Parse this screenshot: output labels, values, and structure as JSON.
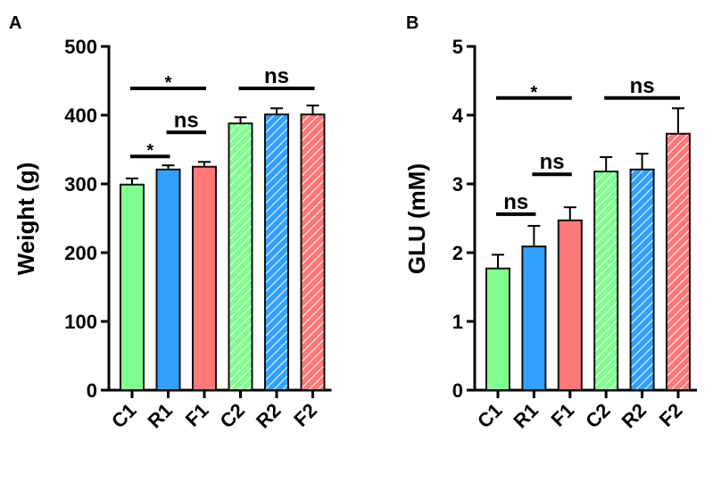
{
  "chart_data": [
    {
      "panel": "A",
      "type": "bar",
      "ylabel": "Weight (g)",
      "ylim": [
        0,
        500
      ],
      "yticks": [
        0,
        100,
        200,
        300,
        400,
        500
      ],
      "categories": [
        "C1",
        "R1",
        "F1",
        "C2",
        "R2",
        "F2"
      ],
      "values": [
        299,
        321,
        325,
        388,
        401,
        401
      ],
      "errors": [
        9,
        6,
        7,
        9,
        9,
        13
      ],
      "colors": [
        "#80ff90",
        "#33a0ff",
        "#ff7878",
        "#80ff90",
        "#33a0ff",
        "#ff7878"
      ],
      "hatched": [
        false,
        false,
        false,
        true,
        true,
        true
      ],
      "comparisons": [
        {
          "from": "C1",
          "to": "F1",
          "label": "*",
          "level": 439
        },
        {
          "from": "C1",
          "to": "R1",
          "label": "*",
          "level": 340
        },
        {
          "from": "R1",
          "to": "F1",
          "label": "ns",
          "level": 375
        },
        {
          "from": "C2",
          "to": "F2",
          "label": "ns",
          "level": 439
        }
      ]
    },
    {
      "panel": "B",
      "type": "bar",
      "ylabel": "GLU (mM)",
      "ylim": [
        0,
        5
      ],
      "yticks": [
        0,
        1,
        2,
        3,
        4,
        5
      ],
      "categories": [
        "C1",
        "R1",
        "F1",
        "C2",
        "R2",
        "F2"
      ],
      "values": [
        1.77,
        2.09,
        2.47,
        3.18,
        3.21,
        3.73
      ],
      "errors": [
        0.2,
        0.3,
        0.19,
        0.21,
        0.23,
        0.37
      ],
      "colors": [
        "#80ff90",
        "#33a0ff",
        "#ff7878",
        "#80ff90",
        "#33a0ff",
        "#ff7878"
      ],
      "hatched": [
        false,
        false,
        false,
        true,
        true,
        true
      ],
      "comparisons": [
        {
          "from": "C1",
          "to": "F1",
          "label": "*",
          "level": 4.25
        },
        {
          "from": "C1",
          "to": "R1",
          "label": "ns",
          "level": 2.56
        },
        {
          "from": "R1",
          "to": "F1",
          "label": "ns",
          "level": 3.14
        },
        {
          "from": "C2",
          "to": "F2",
          "label": "ns",
          "level": 4.25
        }
      ]
    }
  ]
}
